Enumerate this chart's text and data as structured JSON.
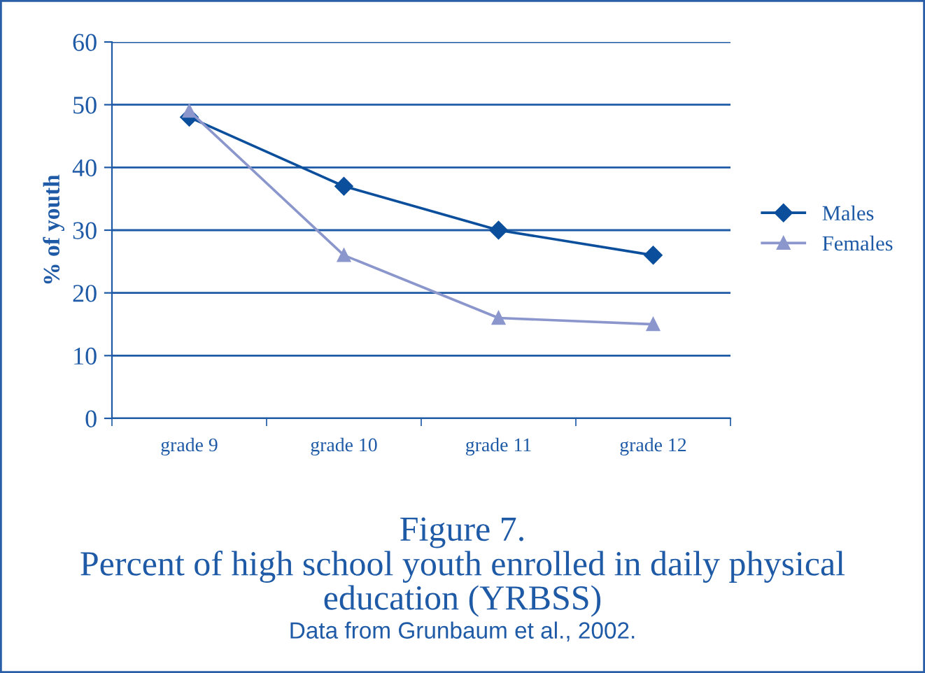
{
  "chart_data": {
    "type": "line",
    "title": "Figure 7.\nPercent of high school youth enrolled in daily physical\neducation (YRBSS)",
    "subtitle": "Data from Grunbaum et al., 2002.",
    "ylabel": "% of youth",
    "categories": [
      "grade 9",
      "grade 10",
      "grade 11",
      "grade 12"
    ],
    "series": [
      {
        "name": "Males",
        "color": "#0b4f9c",
        "marker": "diamond",
        "values": [
          48,
          37,
          30,
          26
        ]
      },
      {
        "name": "Females",
        "color": "#8b97cc",
        "marker": "triangle",
        "values": [
          49,
          26,
          16,
          15
        ]
      }
    ],
    "ylim": [
      0,
      60
    ],
    "yticks": [
      0,
      10,
      20,
      30,
      40,
      50,
      60
    ],
    "grid": "y",
    "legend": "right",
    "line_style": "solid"
  }
}
